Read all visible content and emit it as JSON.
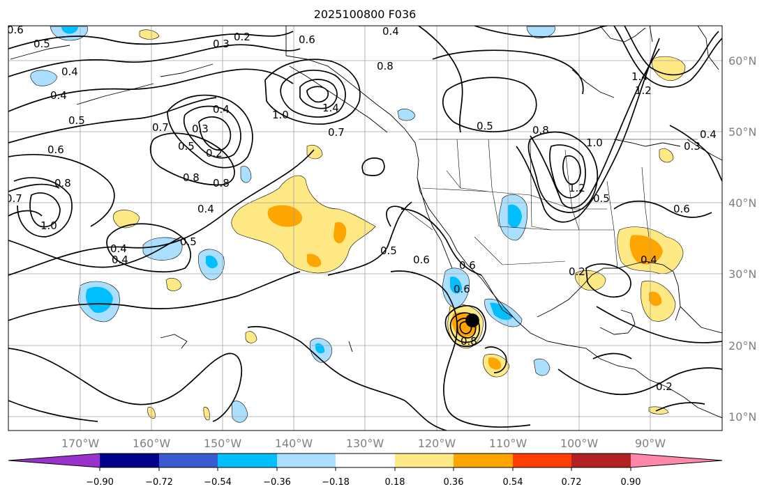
{
  "title": "2025100800 F036",
  "map": {
    "lon_ticks": [
      "170°W",
      "160°W",
      "150°W",
      "140°W",
      "130°W",
      "120°W",
      "110°W",
      "100°W",
      "90°W"
    ],
    "lat_ticks": [
      "60°N",
      "50°N",
      "40°N",
      "30°N",
      "20°N",
      "10°N"
    ],
    "contour_labels": [
      "0.6",
      "0.5",
      "0.4",
      "0.4",
      "0.5",
      "0.6",
      "0.8",
      "0.7",
      "1.0",
      "0.4",
      "0.4",
      "0.5",
      "0.3",
      "0.2",
      "0.6",
      "0.4",
      "0.3",
      "0.8",
      "0.5",
      "0.2",
      "0.8",
      "0.7",
      "0.4",
      "0.5",
      "0.6",
      "0.8",
      "1.0",
      "1.4",
      "0.7",
      "0.4",
      "0.5",
      "0.6",
      "0.8",
      "1.0",
      "1.2",
      "0.5",
      "1.4",
      "1.2",
      "0.3",
      "0.4",
      "0.6",
      "0.4",
      "0.2",
      "0.2",
      "0.6",
      "0.8"
    ]
  },
  "colorbar": {
    "ticks": [
      "−0.90",
      "−0.72",
      "−0.54",
      "−0.36",
      "−0.18",
      "0.18",
      "0.36",
      "0.54",
      "0.72",
      "0.90"
    ],
    "colors": [
      "#9932cc",
      "#00008b",
      "#3a5bd0",
      "#00bfff",
      "#abdfff",
      "#ffffff",
      "#ffe985",
      "#ffa500",
      "#ff3e00",
      "#b22222",
      "#ff88aa"
    ]
  }
}
